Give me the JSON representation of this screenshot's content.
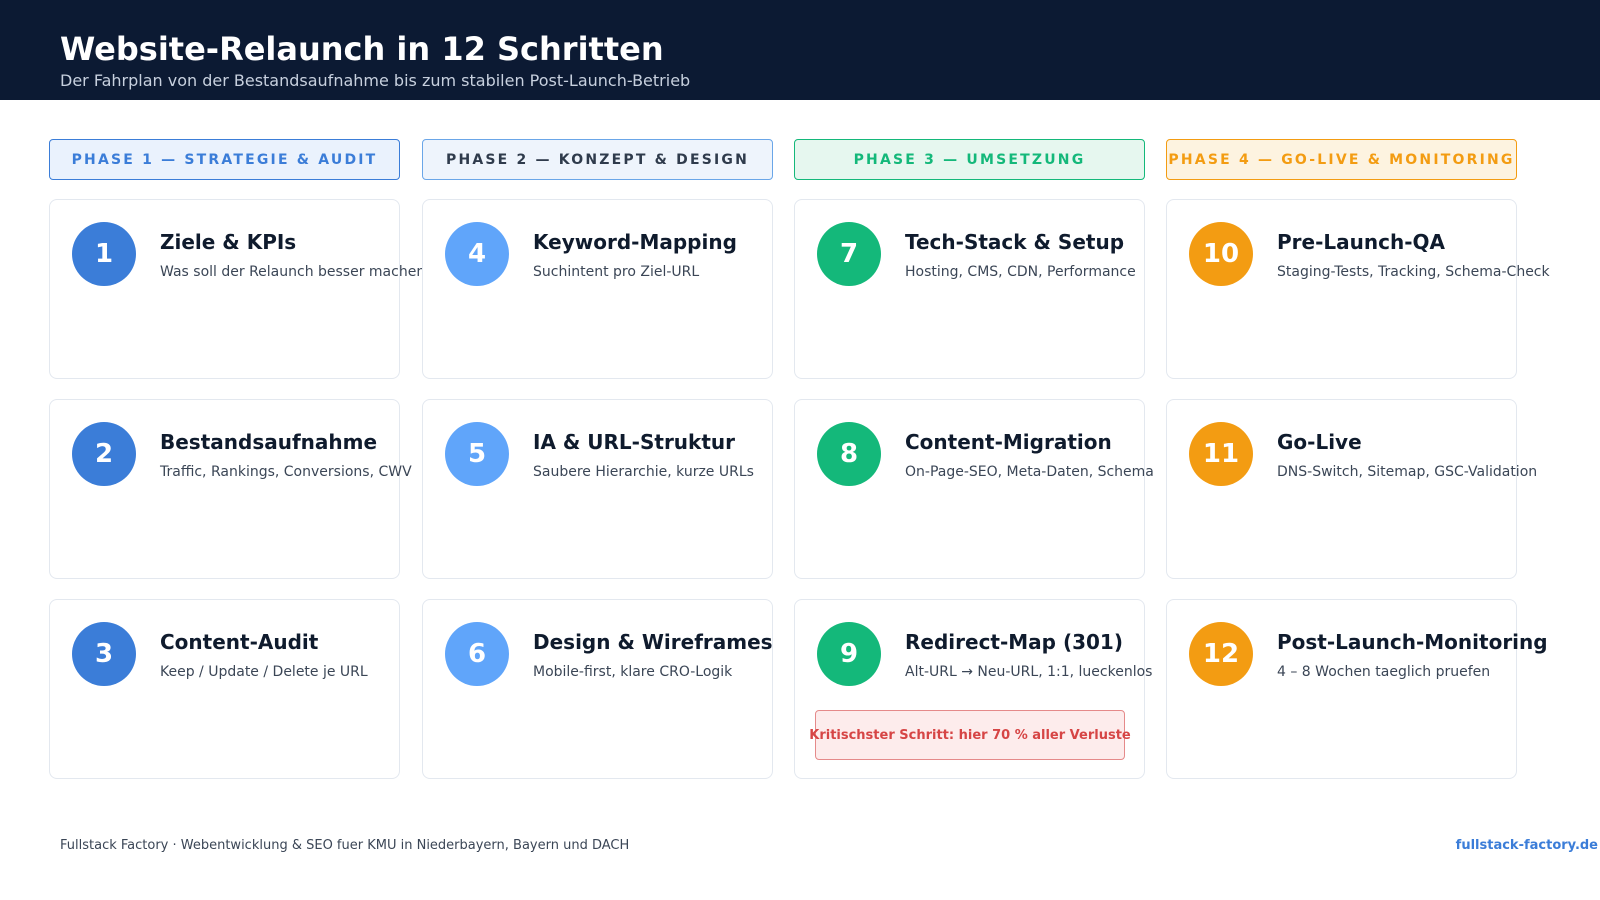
{
  "header": {
    "title": "Website-Relaunch in 12 Schritten",
    "subtitle": "Der Fahrplan von der Bestandsaufnahme bis zum stabilen Post-Launch-Betrieb",
    "background_color": "#0c1a33"
  },
  "phases": [
    {
      "label": "PHASE 1 — STRATEGIE & AUDIT",
      "color": "#3b7dd8",
      "bg": "#eaf2fd",
      "steps": [
        {
          "number": "1",
          "title": "Ziele & KPIs",
          "description": "Was soll der Relaunch besser machen?"
        },
        {
          "number": "2",
          "title": "Bestandsaufnahme",
          "description": "Traffic, Rankings, Conversions, CWV"
        },
        {
          "number": "3",
          "title": "Content-Audit",
          "description": "Keep / Update / Delete je URL"
        }
      ]
    },
    {
      "label": "PHASE 2 — KONZEPT & DESIGN",
      "color": "#2f3b4c",
      "bg": "#eef4fc",
      "border": "#6aa6e8",
      "circle": "#60a5fa",
      "steps": [
        {
          "number": "4",
          "title": "Keyword-Mapping",
          "description": "Suchintent pro Ziel-URL"
        },
        {
          "number": "5",
          "title": "IA & URL-Struktur",
          "description": "Saubere Hierarchie, kurze URLs"
        },
        {
          "number": "6",
          "title": "Design & Wireframes",
          "description": "Mobile-first, klare CRO-Logik"
        }
      ]
    },
    {
      "label": "PHASE 3 — UMSETZUNG",
      "color": "#14b87a",
      "bg": "#e6f7ef",
      "steps": [
        {
          "number": "7",
          "title": "Tech-Stack & Setup",
          "description": "Hosting, CMS, CDN, Performance"
        },
        {
          "number": "8",
          "title": "Content-Migration",
          "description": "On-Page-SEO, Meta-Daten, Schema"
        },
        {
          "number": "9",
          "title": "Redirect-Map (301)",
          "description": "Alt-URL → Neu-URL, 1:1, lueckenlos",
          "warning": "Kritischster Schritt: hier 70 % aller Verluste"
        }
      ]
    },
    {
      "label": "PHASE 4 — GO-LIVE & MONITORING",
      "color": "#f39c12",
      "bg": "#fdf3e0",
      "steps": [
        {
          "number": "10",
          "title": "Pre-Launch-QA",
          "description": "Staging-Tests, Tracking, Schema-Check"
        },
        {
          "number": "11",
          "title": "Go-Live",
          "description": "DNS-Switch, Sitemap, GSC-Validation"
        },
        {
          "number": "12",
          "title": "Post-Launch-Monitoring",
          "description": "4 – 8 Wochen taeglich pruefen"
        }
      ]
    }
  ],
  "footer": {
    "left": "Fullstack Factory · Webentwicklung & SEO fuer KMU in Niederbayern, Bayern und DACH",
    "right": "fullstack-factory.de"
  }
}
